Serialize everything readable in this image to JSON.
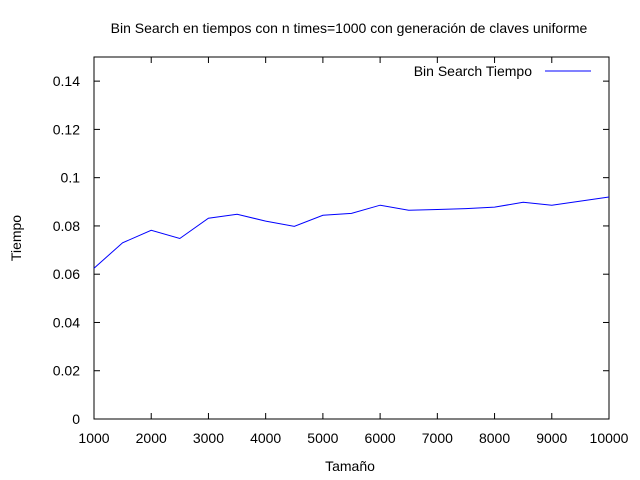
{
  "chart_data": {
    "type": "line",
    "title": "Bin Search en tiempos con n times=1000 con generación de claves uniforme",
    "xlabel": "Tamaño",
    "ylabel": "Tiempo",
    "xlim": [
      1000,
      10000
    ],
    "ylim": [
      0,
      0.15
    ],
    "xticks": [
      1000,
      2000,
      3000,
      4000,
      5000,
      6000,
      7000,
      8000,
      9000,
      10000
    ],
    "xtick_labels": [
      "1000",
      "2000",
      "3000",
      "4000",
      "5000",
      "6000",
      "7000",
      "8000",
      "9000",
      "10000"
    ],
    "yticks": [
      0,
      0.02,
      0.04,
      0.06,
      0.08,
      0.1,
      0.12,
      0.14
    ],
    "ytick_labels": [
      "0",
      "0.02",
      "0.04",
      "0.06",
      "0.08",
      "0.1",
      "0.12",
      "0.14"
    ],
    "grid": false,
    "legend_position": "top-right",
    "series": [
      {
        "name": "Bin Search Tiempo",
        "color": "#0000ff",
        "x": [
          1000,
          1500,
          2000,
          2500,
          3000,
          3500,
          4000,
          4500,
          5000,
          5500,
          6000,
          6500,
          7000,
          7500,
          8000,
          8500,
          9000,
          9500,
          10000
        ],
        "y": [
          0.0625,
          0.073,
          0.0782,
          0.0748,
          0.0832,
          0.0848,
          0.082,
          0.0798,
          0.0844,
          0.0852,
          0.0886,
          0.0865,
          0.0868,
          0.0872,
          0.0878,
          0.0898,
          0.0886,
          0.0903,
          0.092
        ]
      }
    ]
  }
}
